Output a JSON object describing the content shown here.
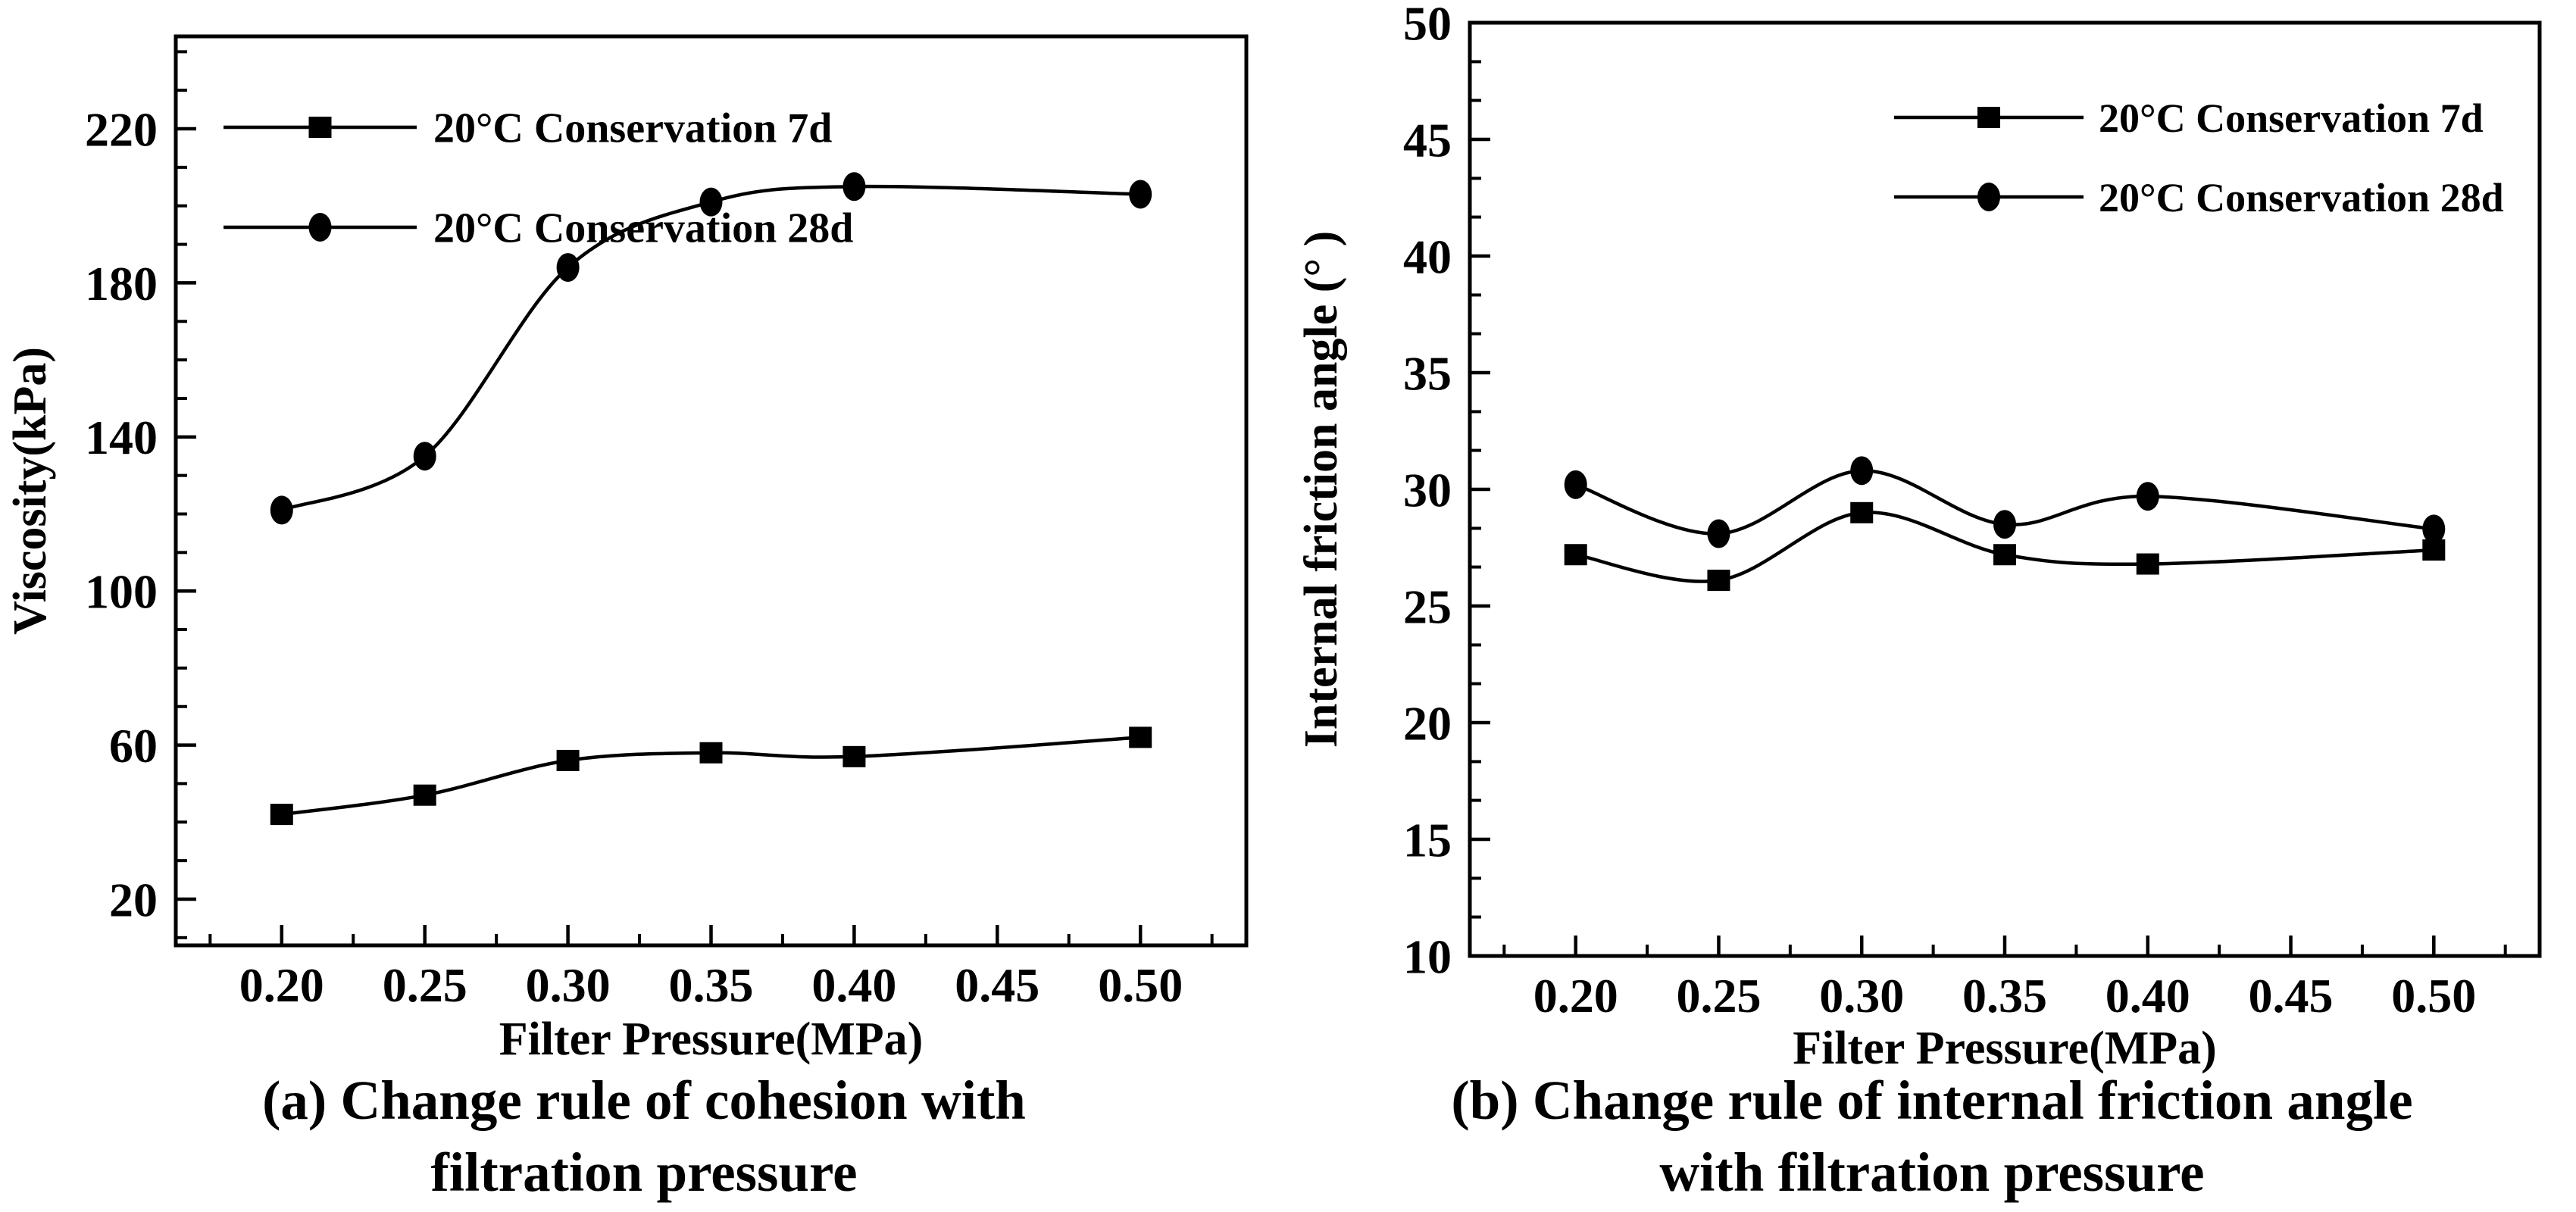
{
  "figure": {
    "background": "#ffffff",
    "ink": "#000000"
  },
  "panels": [
    {
      "caption_line1": "(a) Change rule of cohesion with",
      "caption_line2": "filtration pressure"
    },
    {
      "caption_line1": "(b) Change rule of internal friction angle",
      "caption_line2": "with filtration pressure"
    }
  ],
  "chart_data": [
    {
      "type": "line",
      "title": "",
      "xlabel": "Filter Pressure(MPa)",
      "ylabel": "Viscosity(kPa)",
      "x": [
        0.2,
        0.25,
        0.3,
        0.35,
        0.4,
        0.5
      ],
      "series": [
        {
          "name": "20°C Conservation 7d",
          "marker": "square",
          "values": [
            42,
            47,
            56,
            58,
            57,
            62
          ]
        },
        {
          "name": "20°C Conservation 28d",
          "marker": "circle",
          "values": [
            121,
            135,
            184,
            201,
            205,
            203
          ]
        }
      ],
      "xlim": [
        0.163,
        0.537
      ],
      "ylim": [
        8,
        244
      ],
      "x_major_ticks": [
        0.2,
        0.25,
        0.3,
        0.35,
        0.4,
        0.45,
        0.5
      ],
      "x_tick_labels": [
        "0.20",
        "0.25",
        "0.30",
        "0.35",
        "0.40",
        "0.45",
        "0.50"
      ],
      "x_minor_ticks": [
        0.175,
        0.225,
        0.275,
        0.325,
        0.375,
        0.425,
        0.475,
        0.525
      ],
      "y_major_ticks": [
        20,
        60,
        100,
        140,
        180,
        220
      ],
      "y_tick_labels": [
        "20",
        "60",
        "100",
        "140",
        "180",
        "220"
      ],
      "y_minor_ticks": [
        10,
        30,
        40,
        50,
        70,
        80,
        90,
        110,
        120,
        130,
        150,
        160,
        170,
        190,
        200,
        210,
        230,
        240
      ],
      "grid": false,
      "legend_position": "top-left"
    },
    {
      "type": "line",
      "title": "",
      "xlabel": "Filter Pressure(MPa)",
      "ylabel": "Internal friction angle (° )",
      "x": [
        0.2,
        0.25,
        0.3,
        0.35,
        0.4,
        0.5
      ],
      "series": [
        {
          "name": "20°C Conservation 7d",
          "marker": "square",
          "values": [
            27.2,
            26.1,
            29.0,
            27.2,
            26.8,
            27.4
          ]
        },
        {
          "name": "20°C Conservation 28d",
          "marker": "circle",
          "values": [
            30.2,
            28.1,
            30.8,
            28.5,
            29.7,
            28.3
          ]
        }
      ],
      "xlim": [
        0.163,
        0.537
      ],
      "ylim": [
        10,
        50
      ],
      "x_major_ticks": [
        0.2,
        0.25,
        0.3,
        0.35,
        0.4,
        0.45,
        0.5
      ],
      "x_tick_labels": [
        "0.20",
        "0.25",
        "0.30",
        "0.35",
        "0.40",
        "0.45",
        "0.50"
      ],
      "x_minor_ticks": [
        0.175,
        0.225,
        0.275,
        0.325,
        0.375,
        0.425,
        0.475,
        0.525
      ],
      "y_major_ticks": [
        10,
        15,
        20,
        25,
        30,
        35,
        40,
        45,
        50
      ],
      "y_tick_labels": [
        "10",
        "15",
        "20",
        "25",
        "30",
        "35",
        "40",
        "45",
        "50"
      ],
      "y_minor_ticks": [
        11.67,
        13.33,
        16.67,
        18.33,
        21.67,
        23.33,
        26.67,
        28.33,
        31.67,
        33.33,
        36.67,
        38.33,
        41.67,
        43.33,
        46.67,
        48.33
      ],
      "grid": false,
      "legend_position": "top-right"
    }
  ]
}
